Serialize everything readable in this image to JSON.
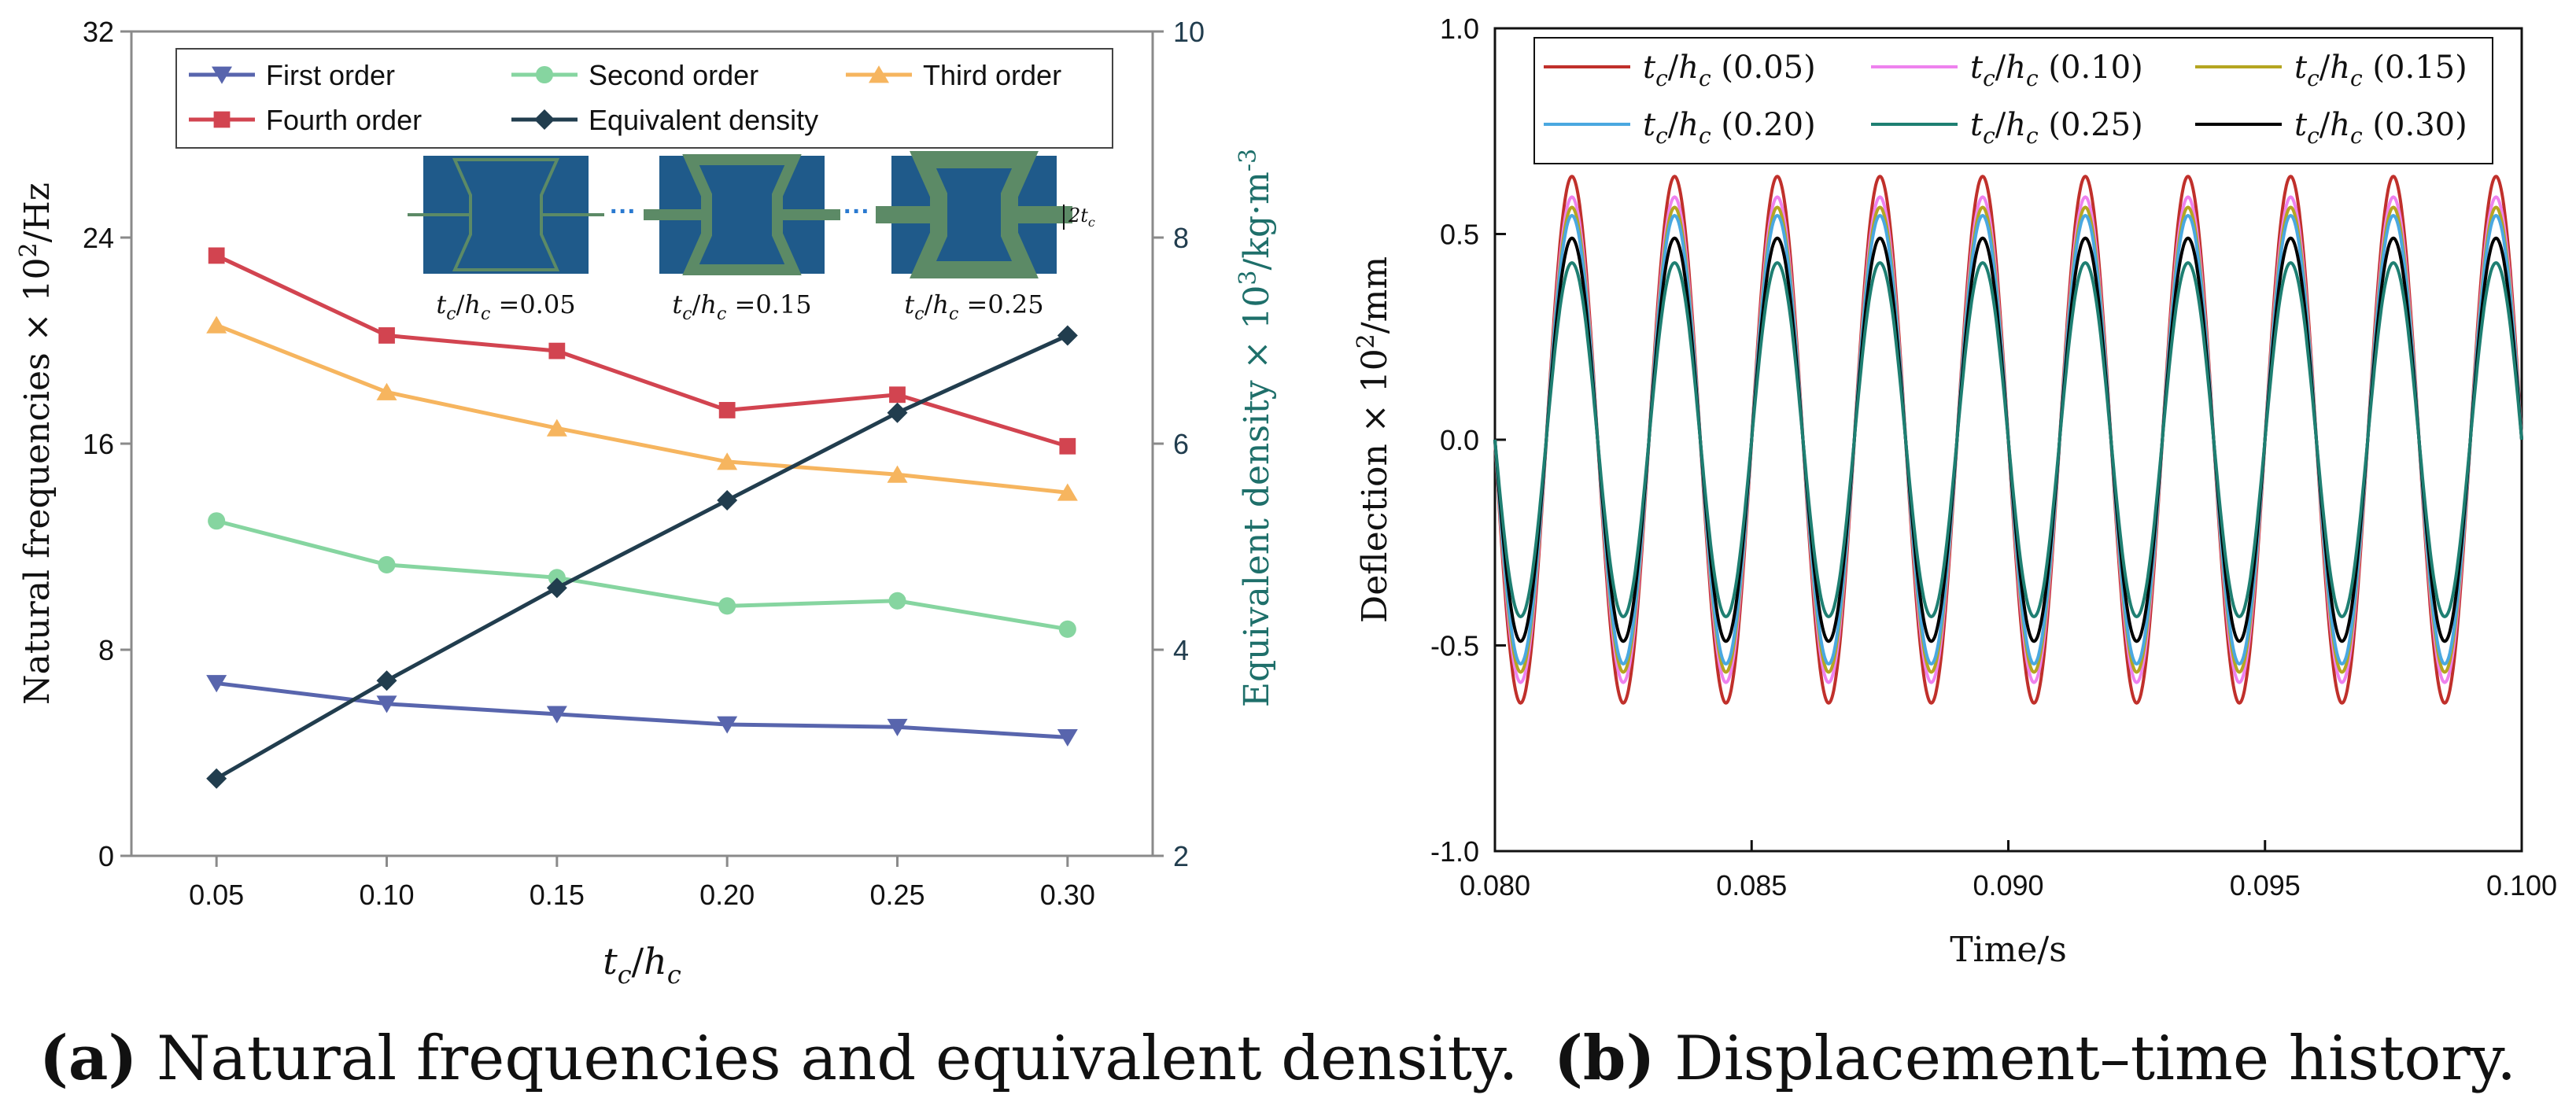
{
  "chart_data": [
    {
      "type": "line",
      "x": [
        0.05,
        0.1,
        0.15,
        0.2,
        0.25,
        0.3
      ],
      "x_tick_labels": [
        "0.05",
        "0.10",
        "0.15",
        "0.20",
        "0.25",
        "0.30"
      ],
      "xlim": [
        0.025,
        0.325
      ],
      "xlabel_main": "t",
      "xlabel_sub": "c",
      "xlabel_sep": "/",
      "xlabel_main2": "h",
      "xlabel_sub2": "c",
      "ylim_left": [
        0,
        32
      ],
      "y_ticks_left": [
        "0",
        "8",
        "16",
        "24",
        "32"
      ],
      "ylabel_left_text": "Natural frequencies × 10",
      "ylabel_left_sup": "2",
      "ylabel_left_unit": "/Hz",
      "ylim_right": [
        2,
        10
      ],
      "y_ticks_right": [
        "2",
        "4",
        "6",
        "8",
        "10"
      ],
      "ylabel_right_text": "Equivalent density × 10",
      "ylabel_right_sup": "3",
      "ylabel_right_unit": "/kg·m",
      "ylabel_right_sup2": "-3",
      "series": [
        {
          "name": "First order",
          "axis": "left",
          "color": "#5865ad",
          "marker": "triangle-down",
          "values": [
            6.7,
            5.9,
            5.5,
            5.1,
            5.0,
            4.6
          ]
        },
        {
          "name": "Second order",
          "axis": "left",
          "color": "#86d5a0",
          "marker": "circle",
          "values": [
            13.0,
            11.3,
            10.8,
            9.7,
            9.9,
            8.8
          ]
        },
        {
          "name": "Third order",
          "axis": "left",
          "color": "#f6b55f",
          "marker": "triangle-up",
          "values": [
            20.6,
            18.0,
            16.6,
            15.3,
            14.8,
            14.1
          ]
        },
        {
          "name": "Fourth order",
          "axis": "left",
          "color": "#d24450",
          "marker": "square",
          "values": [
            23.3,
            20.2,
            19.6,
            17.3,
            17.9,
            15.9
          ]
        },
        {
          "name": "Equivalent density",
          "axis": "right",
          "color": "#213d4e",
          "marker": "diamond",
          "values": [
            2.75,
            3.7,
            4.6,
            5.45,
            6.3,
            7.05
          ]
        }
      ],
      "inset": {
        "labels": [
          {
            "main": "t",
            "sub": "c",
            "sep": "/",
            "main2": "h",
            "sub2": "c",
            "value": "=0.05"
          },
          {
            "main": "t",
            "sub": "c",
            "sep": "/",
            "main2": "h",
            "sub2": "c",
            "value": "=0.15"
          },
          {
            "main": "t",
            "sub": "c",
            "sep": "/",
            "main2": "h",
            "sub2": "c",
            "value": "=0.25"
          }
        ],
        "ellipsis": "···",
        "dim_label": "2t",
        "dim_sub": "c"
      }
    },
    {
      "type": "line",
      "xlim": [
        0.08,
        0.1
      ],
      "x_tick_labels": [
        "0.080",
        "0.085",
        "0.090",
        "0.095",
        "0.100"
      ],
      "ylim": [
        -1.0,
        1.0
      ],
      "y_tick_labels": [
        "-1.0",
        "-0.5",
        "0.0",
        "0.5",
        "1.0"
      ],
      "xlabel": "Time/s",
      "ylabel_text": "Deflection × 10",
      "ylabel_sup": "2",
      "ylabel_unit": "/mm",
      "period": 0.002,
      "series": [
        {
          "name": "(0.05)",
          "color": "#c0302b",
          "amplitude": 0.64
        },
        {
          "name": "(0.10)",
          "color": "#ee82ee",
          "amplitude": 0.59
        },
        {
          "name": "(0.15)",
          "color": "#b5a521",
          "amplitude": 0.565
        },
        {
          "name": "(0.20)",
          "color": "#4aa8e0",
          "amplitude": 0.545
        },
        {
          "name": "(0.25)",
          "color": "#1e7f72",
          "amplitude": 0.43
        },
        {
          "name": "(0.30)",
          "color": "#000000",
          "amplitude": 0.49
        }
      ]
    }
  ],
  "captions": [
    {
      "label": "(a)",
      "text": " Natural frequencies and equivalent density."
    },
    {
      "label": "(b)",
      "text": " Displacement–time history."
    }
  ]
}
